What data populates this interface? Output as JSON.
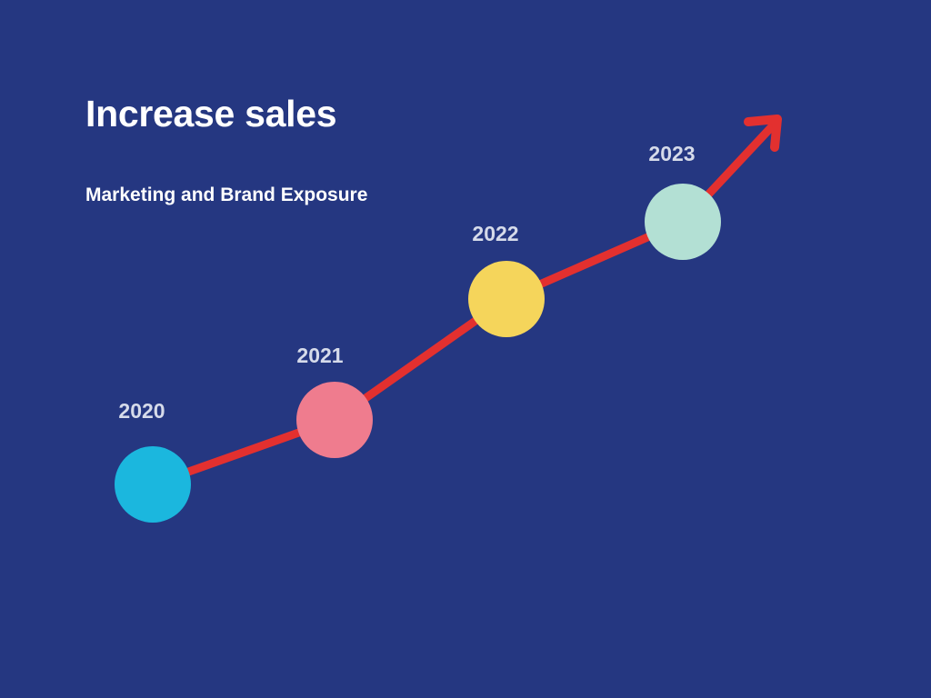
{
  "header": {
    "title": "Increase sales",
    "subtitle": "Marketing and Brand Exposure"
  },
  "colors": {
    "background": "#253781",
    "line": "#e3302f",
    "label": "#d6dbea"
  },
  "milestones": [
    {
      "year": "2020",
      "color": "#1bb7de"
    },
    {
      "year": "2021",
      "color": "#ef7c8e"
    },
    {
      "year": "2022",
      "color": "#f5d55b"
    },
    {
      "year": "2023",
      "color": "#b3e0d4"
    }
  ]
}
